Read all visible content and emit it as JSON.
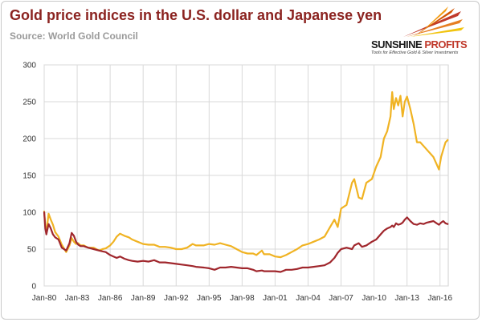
{
  "header": {
    "title": "Gold price indices in the U.S. dollar and Japanese yen",
    "subtitle": "Source: World Gold Council"
  },
  "logo": {
    "name_part1": "SUNSHINE",
    "name_part2": "PROFITS",
    "tagline": "Tools for Effective Gold & Silver Investments"
  },
  "colors": {
    "usd": "#f0b323",
    "jpy": "#a0272d",
    "title": "#8b2320",
    "grid": "#d9d9d9"
  },
  "chart_data": {
    "type": "line",
    "xlim": [
      1980,
      2016.75
    ],
    "ylim": [
      0,
      300
    ],
    "y_ticks": [
      0,
      50,
      100,
      150,
      200,
      250,
      300
    ],
    "x_ticks": [
      {
        "label": "Jan-80",
        "x": 1980
      },
      {
        "label": "Jan-83",
        "x": 1983
      },
      {
        "label": "Jan-86",
        "x": 1986
      },
      {
        "label": "Jan-89",
        "x": 1989
      },
      {
        "label": "Jan-92",
        "x": 1992
      },
      {
        "label": "Jan-95",
        "x": 1995
      },
      {
        "label": "Jan-98",
        "x": 1998
      },
      {
        "label": "Jan-01",
        "x": 2001
      },
      {
        "label": "Jan-04",
        "x": 2004
      },
      {
        "label": "Jan-07",
        "x": 2007
      },
      {
        "label": "Jan-10",
        "x": 2010
      },
      {
        "label": "Jan-13",
        "x": 2013
      },
      {
        "label": "Jan-16",
        "x": 2016
      }
    ],
    "grid": "horizontal and vertical",
    "legend": "none",
    "series": [
      {
        "key": "usd",
        "x": [
          1980.0,
          1980.1,
          1980.2,
          1980.4,
          1980.6,
          1980.8,
          1981.0,
          1981.3,
          1981.6,
          1982.0,
          1982.3,
          1982.5,
          1982.7,
          1982.9,
          1983.1,
          1983.3,
          1983.6,
          1984.0,
          1984.5,
          1985.0,
          1985.3,
          1985.6,
          1986.0,
          1986.3,
          1986.6,
          1986.9,
          1987.3,
          1987.7,
          1988.0,
          1988.5,
          1989.0,
          1989.5,
          1990.0,
          1990.5,
          1991.0,
          1991.5,
          1992.0,
          1992.5,
          1993.0,
          1993.5,
          1993.8,
          1994.5,
          1995.0,
          1995.5,
          1996.0,
          1996.5,
          1997.0,
          1997.5,
          1998.0,
          1998.5,
          1999.0,
          1999.3,
          1999.8,
          2000.0,
          2000.5,
          2001.0,
          2001.5,
          2002.0,
          2002.5,
          2003.0,
          2003.5,
          2004.0,
          2004.5,
          2005.0,
          2005.5,
          2006.0,
          2006.4,
          2006.7,
          2007.0,
          2007.5,
          2008.0,
          2008.2,
          2008.6,
          2008.9,
          2009.3,
          2009.8,
          2010.2,
          2010.6,
          2010.9,
          2011.2,
          2011.5,
          2011.65,
          2011.8,
          2012.0,
          2012.2,
          2012.4,
          2012.6,
          2012.8,
          2013.0,
          2013.3,
          2013.6,
          2013.9,
          2014.2,
          2014.5,
          2014.8,
          2015.1,
          2015.4,
          2015.7,
          2015.9,
          2016.1,
          2016.3,
          2016.5,
          2016.7
        ],
        "y": [
          101,
          82,
          72,
          98,
          90,
          83,
          73,
          67,
          56,
          46,
          55,
          65,
          60,
          57,
          58,
          55,
          55,
          52,
          52,
          48,
          50,
          51,
          55,
          60,
          67,
          71,
          68,
          66,
          63,
          60,
          57,
          56,
          56,
          53,
          53,
          52,
          50,
          50,
          52,
          57,
          55,
          55,
          57,
          56,
          58,
          56,
          54,
          50,
          46,
          44,
          44,
          42,
          48,
          43,
          43,
          40,
          39,
          42,
          46,
          50,
          55,
          57,
          60,
          63,
          67,
          80,
          90,
          80,
          105,
          110,
          140,
          145,
          120,
          118,
          140,
          145,
          162,
          175,
          200,
          210,
          230,
          263,
          240,
          255,
          245,
          258,
          230,
          250,
          257,
          240,
          220,
          195,
          195,
          190,
          185,
          180,
          175,
          165,
          158,
          175,
          185,
          195,
          198
        ]
      },
      {
        "key": "jpy",
        "x": [
          1980.0,
          1980.1,
          1980.2,
          1980.4,
          1980.6,
          1980.8,
          1981.0,
          1981.3,
          1981.6,
          1982.0,
          1982.3,
          1982.5,
          1982.7,
          1982.9,
          1983.1,
          1983.3,
          1983.6,
          1984.0,
          1984.5,
          1985.0,
          1985.3,
          1985.6,
          1986.0,
          1986.3,
          1986.6,
          1986.9,
          1987.3,
          1987.7,
          1988.0,
          1988.5,
          1989.0,
          1989.5,
          1990.0,
          1990.5,
          1991.0,
          1991.5,
          1992.0,
          1992.5,
          1993.0,
          1993.5,
          1993.8,
          1994.5,
          1995.0,
          1995.5,
          1996.0,
          1996.5,
          1997.0,
          1997.5,
          1998.0,
          1998.5,
          1999.0,
          1999.3,
          1999.8,
          2000.0,
          2000.5,
          2001.0,
          2001.5,
          2002.0,
          2002.5,
          2003.0,
          2003.5,
          2004.0,
          2004.5,
          2005.0,
          2005.5,
          2006.0,
          2006.4,
          2006.7,
          2007.0,
          2007.5,
          2008.0,
          2008.2,
          2008.6,
          2008.9,
          2009.3,
          2009.8,
          2010.2,
          2010.6,
          2010.9,
          2011.2,
          2011.5,
          2011.65,
          2011.8,
          2012.0,
          2012.2,
          2012.4,
          2012.6,
          2012.8,
          2013.0,
          2013.3,
          2013.6,
          2013.9,
          2014.2,
          2014.5,
          2014.8,
          2015.1,
          2015.4,
          2015.7,
          2015.9,
          2016.1,
          2016.3,
          2016.5,
          2016.7
        ],
        "y": [
          100,
          78,
          70,
          84,
          78,
          70,
          66,
          63,
          52,
          48,
          58,
          72,
          68,
          60,
          56,
          54,
          54,
          52,
          50,
          48,
          47,
          46,
          42,
          40,
          38,
          40,
          37,
          35,
          34,
          33,
          34,
          33,
          35,
          32,
          32,
          31,
          30,
          29,
          28,
          27,
          26,
          25,
          24,
          22,
          25,
          25,
          26,
          25,
          24,
          24,
          22,
          20,
          21,
          20,
          20,
          20,
          19,
          22,
          22,
          23,
          25,
          25,
          26,
          27,
          28,
          32,
          38,
          45,
          50,
          52,
          50,
          55,
          58,
          53,
          55,
          60,
          63,
          70,
          75,
          78,
          80,
          82,
          80,
          85,
          83,
          84,
          86,
          90,
          93,
          88,
          84,
          83,
          85,
          84,
          86,
          87,
          88,
          85,
          83,
          86,
          88,
          85,
          84
        ]
      }
    ]
  }
}
